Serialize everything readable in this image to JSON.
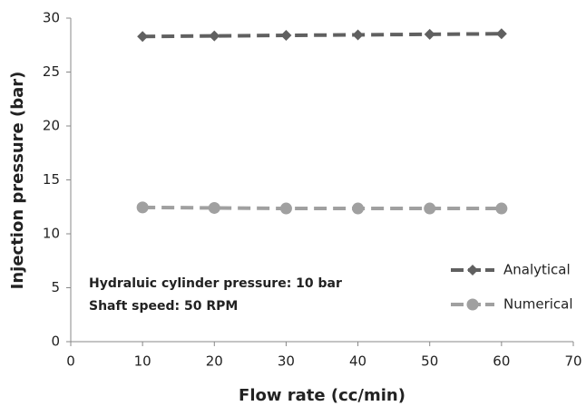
{
  "chart_data": {
    "type": "line",
    "xlabel": "Flow rate (cc/min)",
    "ylabel": "Injection pressure (bar)",
    "x": [
      10,
      20,
      30,
      40,
      50,
      60
    ],
    "series": [
      {
        "name": "Analytical",
        "color": "#606060",
        "marker": "diamond",
        "values": [
          28.3,
          28.35,
          28.4,
          28.45,
          28.5,
          28.55
        ]
      },
      {
        "name": "Numerical",
        "color": "#a0a0a0",
        "marker": "circle",
        "values": [
          12.45,
          12.4,
          12.35,
          12.35,
          12.35,
          12.35
        ]
      }
    ],
    "xlim": [
      0,
      70
    ],
    "xticks": [
      0,
      10,
      20,
      30,
      40,
      50,
      60,
      70
    ],
    "ylim": [
      0,
      30
    ],
    "yticks": [
      0,
      5,
      10,
      15,
      20,
      25,
      30
    ],
    "annotations": [
      "Hydraluic cylinder pressure:  10 bar",
      "Shaft speed: 50 RPM"
    ],
    "legend": "lower right",
    "grid": false
  }
}
